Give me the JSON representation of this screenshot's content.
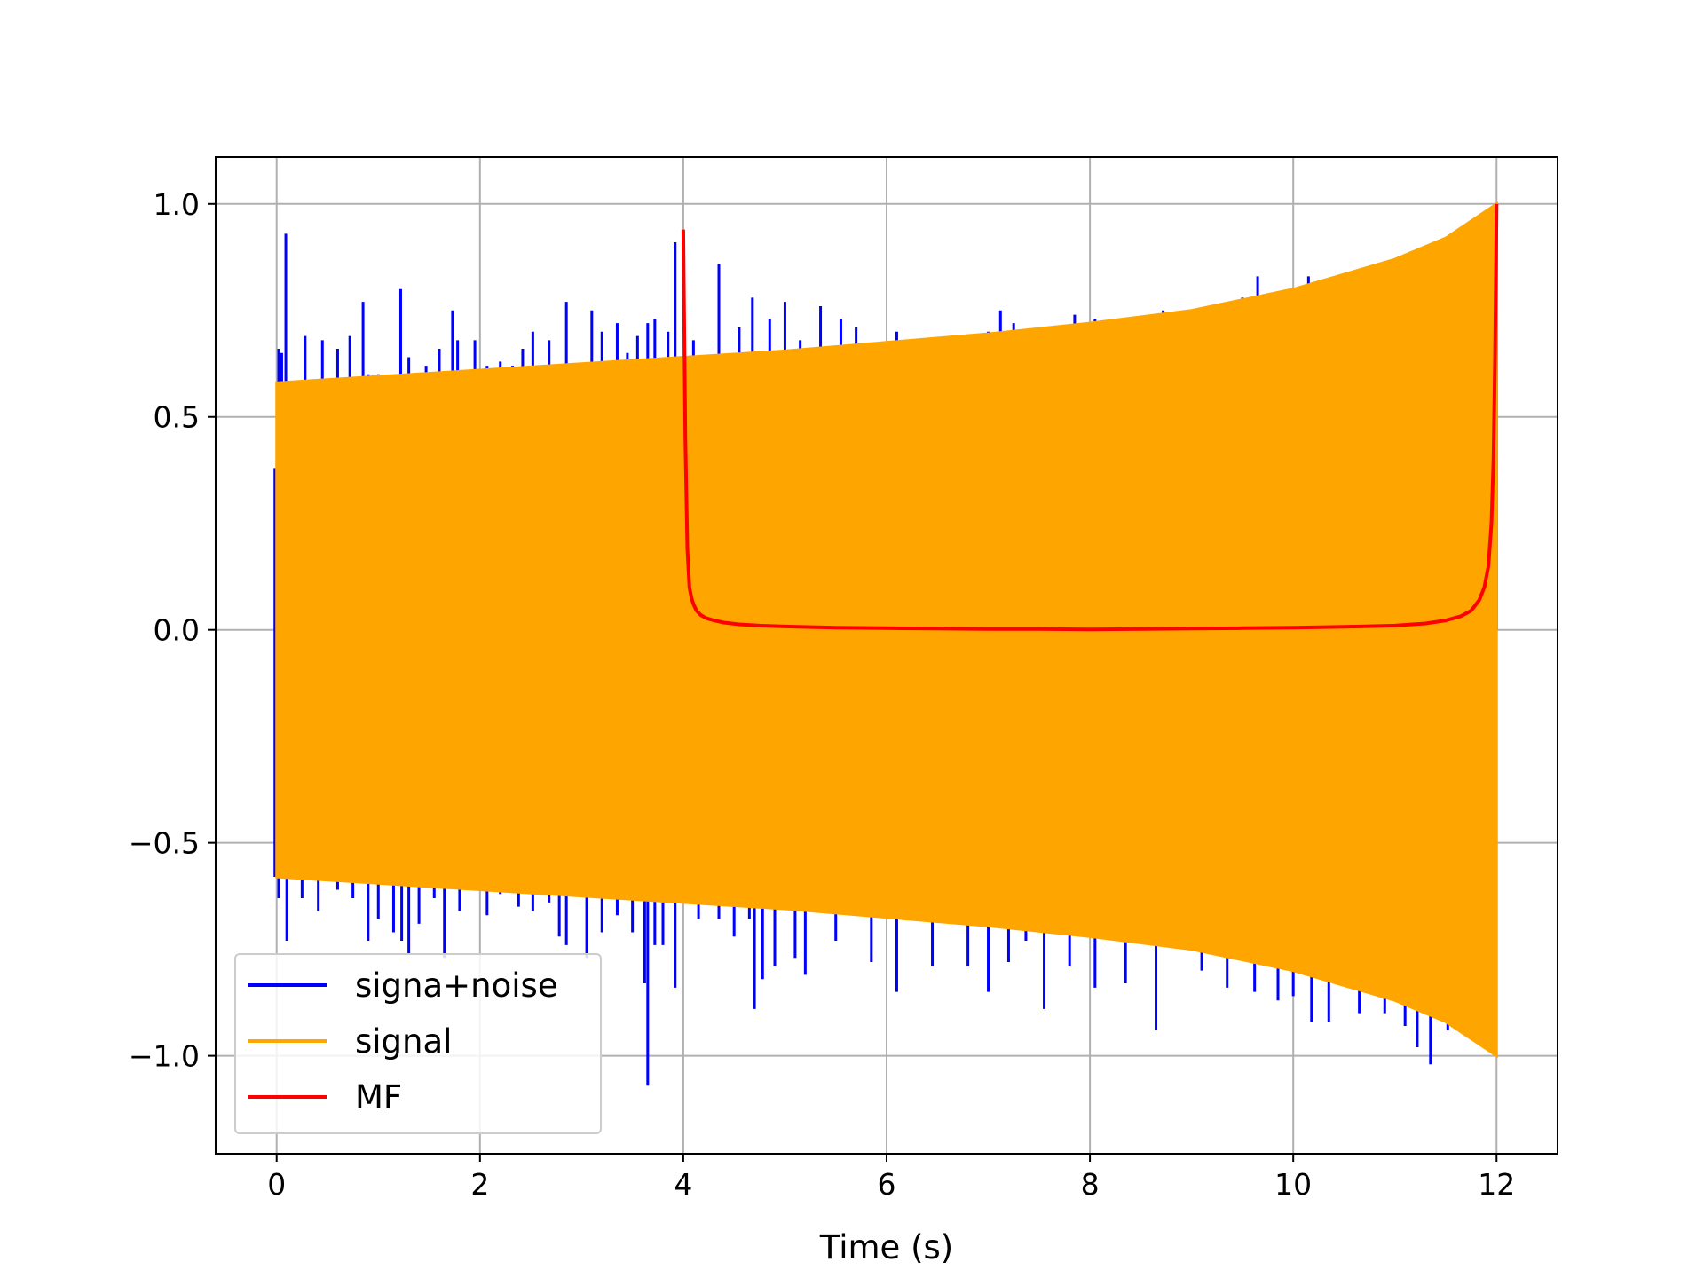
{
  "chart_data": {
    "type": "line",
    "title": "",
    "xlabel": "Time (s)",
    "ylabel": "",
    "xlim": [
      -0.6,
      12.6
    ],
    "ylim": [
      -1.23,
      1.11
    ],
    "x_ticks": [
      0,
      2,
      4,
      6,
      8,
      10,
      12
    ],
    "y_ticks": [
      -1.0,
      -0.5,
      0.0,
      0.5,
      1.0
    ],
    "x_tick_labels": [
      "0",
      "2",
      "4",
      "6",
      "8",
      "10",
      "12"
    ],
    "y_tick_labels": [
      "−1.0",
      "−0.5",
      "0.0",
      "0.5",
      "1.0"
    ],
    "grid": true,
    "legend_position": "lower-left",
    "series": [
      {
        "name": "signa+noise",
        "color": "#0000ff",
        "x_range": [
          0,
          12
        ],
        "spikes_up": [
          [
            0.02,
            0.66
          ],
          [
            0.05,
            0.65
          ],
          [
            0.09,
            0.93
          ],
          [
            0.28,
            0.69
          ],
          [
            0.45,
            0.68
          ],
          [
            0.6,
            0.66
          ],
          [
            0.72,
            0.69
          ],
          [
            0.85,
            0.77
          ],
          [
            0.9,
            0.6
          ],
          [
            1.0,
            0.6
          ],
          [
            1.22,
            0.8
          ],
          [
            1.3,
            0.64
          ],
          [
            1.47,
            0.62
          ],
          [
            1.6,
            0.66
          ],
          [
            1.73,
            0.75
          ],
          [
            1.78,
            0.68
          ],
          [
            1.95,
            0.68
          ],
          [
            2.07,
            0.62
          ],
          [
            2.2,
            0.63
          ],
          [
            2.32,
            0.62
          ],
          [
            2.42,
            0.66
          ],
          [
            2.52,
            0.7
          ],
          [
            2.68,
            0.68
          ],
          [
            2.85,
            0.77
          ],
          [
            3.1,
            0.75
          ],
          [
            3.2,
            0.7
          ],
          [
            3.35,
            0.72
          ],
          [
            3.45,
            0.65
          ],
          [
            3.55,
            0.69
          ],
          [
            3.65,
            0.72
          ],
          [
            3.72,
            0.73
          ],
          [
            3.85,
            0.7
          ],
          [
            3.92,
            0.91
          ],
          [
            4.1,
            0.68
          ],
          [
            4.35,
            0.86
          ],
          [
            4.55,
            0.71
          ],
          [
            4.68,
            0.78
          ],
          [
            4.85,
            0.73
          ],
          [
            5.0,
            0.77
          ],
          [
            5.15,
            0.68
          ],
          [
            5.35,
            0.76
          ],
          [
            5.55,
            0.73
          ],
          [
            5.7,
            0.71
          ],
          [
            6.1,
            0.7
          ],
          [
            6.6,
            0.68
          ],
          [
            6.9,
            0.65
          ],
          [
            7.0,
            0.7
          ],
          [
            7.12,
            0.75
          ],
          [
            7.25,
            0.72
          ],
          [
            7.5,
            0.68
          ],
          [
            7.85,
            0.74
          ],
          [
            8.05,
            0.73
          ],
          [
            8.2,
            0.67
          ],
          [
            8.5,
            0.72
          ],
          [
            8.72,
            0.75
          ],
          [
            8.93,
            0.72
          ],
          [
            9.18,
            0.76
          ],
          [
            9.42,
            0.73
          ],
          [
            9.5,
            0.78
          ],
          [
            9.65,
            0.83
          ],
          [
            9.85,
            0.75
          ],
          [
            10.15,
            0.83
          ],
          [
            10.6,
            0.8
          ],
          [
            10.75,
            0.75
          ],
          [
            11.0,
            0.76
          ],
          [
            11.15,
            0.76
          ],
          [
            11.25,
            0.87
          ],
          [
            11.45,
            0.86
          ],
          [
            11.78,
            0.74
          ],
          [
            11.9,
            0.62
          ],
          [
            12.0,
            0.94
          ]
        ],
        "spikes_down": [
          [
            0.02,
            -0.63
          ],
          [
            0.1,
            -0.73
          ],
          [
            0.25,
            -0.63
          ],
          [
            0.41,
            -0.66
          ],
          [
            0.6,
            -0.61
          ],
          [
            0.75,
            -0.63
          ],
          [
            0.9,
            -0.73
          ],
          [
            1.0,
            -0.68
          ],
          [
            1.15,
            -0.71
          ],
          [
            1.23,
            -0.73
          ],
          [
            1.3,
            -0.76
          ],
          [
            1.4,
            -0.69
          ],
          [
            1.55,
            -0.63
          ],
          [
            1.65,
            -0.77
          ],
          [
            1.8,
            -0.66
          ],
          [
            2.07,
            -0.67
          ],
          [
            2.2,
            -0.62
          ],
          [
            2.38,
            -0.65
          ],
          [
            2.52,
            -0.66
          ],
          [
            2.68,
            -0.64
          ],
          [
            2.78,
            -0.72
          ],
          [
            2.85,
            -0.74
          ],
          [
            3.05,
            -0.77
          ],
          [
            3.2,
            -0.71
          ],
          [
            3.35,
            -0.67
          ],
          [
            3.5,
            -0.71
          ],
          [
            3.62,
            -0.83
          ],
          [
            3.65,
            -1.07
          ],
          [
            3.72,
            -0.74
          ],
          [
            3.8,
            -0.74
          ],
          [
            3.92,
            -0.84
          ],
          [
            4.15,
            -0.68
          ],
          [
            4.35,
            -0.68
          ],
          [
            4.5,
            -0.72
          ],
          [
            4.65,
            -0.68
          ],
          [
            4.7,
            -0.89
          ],
          [
            4.78,
            -0.82
          ],
          [
            4.9,
            -0.79
          ],
          [
            5.1,
            -0.77
          ],
          [
            5.2,
            -0.81
          ],
          [
            5.5,
            -0.73
          ],
          [
            5.85,
            -0.78
          ],
          [
            6.1,
            -0.85
          ],
          [
            6.45,
            -0.79
          ],
          [
            6.8,
            -0.79
          ],
          [
            7.0,
            -0.85
          ],
          [
            7.2,
            -0.78
          ],
          [
            7.37,
            -0.73
          ],
          [
            7.55,
            -0.89
          ],
          [
            7.8,
            -0.79
          ],
          [
            8.05,
            -0.84
          ],
          [
            8.35,
            -0.83
          ],
          [
            8.65,
            -0.94
          ],
          [
            9.1,
            -0.8
          ],
          [
            9.35,
            -0.84
          ],
          [
            9.62,
            -0.85
          ],
          [
            9.85,
            -0.87
          ],
          [
            10.0,
            -0.86
          ],
          [
            10.18,
            -0.92
          ],
          [
            10.35,
            -0.92
          ],
          [
            10.65,
            -0.9
          ],
          [
            10.9,
            -0.9
          ],
          [
            11.1,
            -0.93
          ],
          [
            11.22,
            -0.98
          ],
          [
            11.35,
            -1.02
          ],
          [
            11.52,
            -0.94
          ],
          [
            11.8,
            -0.93
          ],
          [
            11.95,
            -0.95
          ]
        ]
      },
      {
        "name": "signal",
        "color": "#ffa500",
        "envelope_x": [
          0,
          1,
          2,
          3,
          4,
          5,
          6,
          7,
          8,
          9,
          10,
          11,
          11.5,
          12
        ],
        "envelope_y": [
          0.58,
          0.595,
          0.61,
          0.625,
          0.64,
          0.655,
          0.675,
          0.695,
          0.72,
          0.75,
          0.8,
          0.87,
          0.92,
          1.0
        ]
      },
      {
        "name": "MF",
        "color": "#ff0000",
        "x": [
          4.0,
          4.02,
          4.04,
          4.06,
          4.08,
          4.1,
          4.13,
          4.17,
          4.22,
          4.3,
          4.4,
          4.55,
          4.75,
          5.0,
          5.5,
          6.0,
          6.5,
          7.0,
          7.5,
          8.0,
          8.5,
          9.0,
          9.5,
          10.0,
          10.5,
          11.0,
          11.3,
          11.5,
          11.65,
          11.75,
          11.83,
          11.88,
          11.92,
          11.95,
          11.97,
          11.985,
          12.0
        ],
        "y": [
          0.94,
          0.45,
          0.19,
          0.1,
          0.075,
          0.06,
          0.045,
          0.035,
          0.028,
          0.022,
          0.017,
          0.013,
          0.01,
          0.008,
          0.005,
          0.004,
          0.003,
          0.002,
          0.002,
          0.001,
          0.002,
          0.003,
          0.004,
          0.005,
          0.007,
          0.01,
          0.015,
          0.022,
          0.032,
          0.045,
          0.07,
          0.1,
          0.15,
          0.25,
          0.4,
          0.65,
          1.0
        ]
      }
    ]
  }
}
